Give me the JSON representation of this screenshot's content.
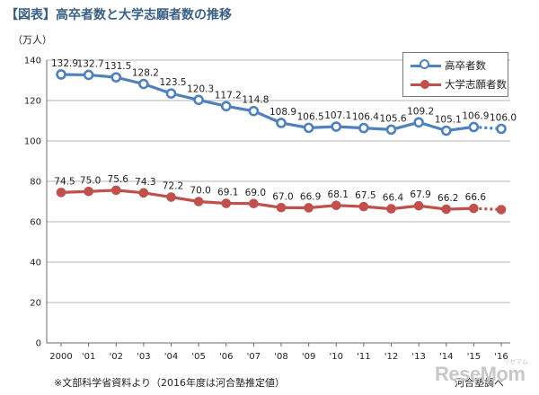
{
  "title": "【図表】高卒者数と大学志願者数の推移",
  "unit_label": "（万人）",
  "footnote": "※文部科学省資料より（2016年度は河合塾推定値）",
  "source_credit": "河合塾調べ",
  "watermark": {
    "main": "ReseMom",
    "sub": "リセマム"
  },
  "colors": {
    "graduates": "#4f81bd",
    "applicants": "#c0504d"
  },
  "chart_data": {
    "type": "line",
    "title": "【図表】高卒者数と大学志願者数の推移",
    "ylabel": "（万人）",
    "xlabel": "",
    "ylim": [
      0,
      140
    ],
    "yticks": [
      0,
      20,
      40,
      60,
      80,
      100,
      120,
      140
    ],
    "grid": true,
    "legend_position": "top-right",
    "categories": [
      "2000",
      "'01",
      "'02",
      "'03",
      "'04",
      "'05",
      "'06",
      "'07",
      "'08",
      "'09",
      "'10",
      "'11",
      "'12",
      "'13",
      "'14",
      "'15",
      "'16"
    ],
    "series": [
      {
        "name": "高卒者数",
        "color": "#4f81bd",
        "values": [
          132.9,
          132.7,
          131.5,
          128.2,
          123.5,
          120.3,
          117.2,
          114.8,
          108.9,
          106.5,
          107.1,
          106.4,
          105.6,
          109.2,
          105.1,
          106.9,
          106.0
        ],
        "labels": [
          "132.9",
          "132.7",
          "131.5",
          "128.2",
          "123.5",
          "120.3",
          "117.2",
          "114.8",
          "108.9",
          "106.5",
          "107.1",
          "106.4",
          "105.6",
          "109.2",
          "105.1",
          "106.9",
          "106.0"
        ],
        "estimated_last": true
      },
      {
        "name": "大学志願者数",
        "color": "#c0504d",
        "values": [
          74.5,
          75.0,
          75.6,
          74.3,
          72.2,
          70.0,
          69.1,
          69.0,
          67.0,
          66.9,
          68.1,
          67.5,
          66.4,
          67.9,
          66.2,
          66.6,
          66.0
        ],
        "labels": [
          "74.5",
          "75.0",
          "75.6",
          "74.3",
          "72.2",
          "70.0",
          "69.1",
          "69.0",
          "67.0",
          "66.9",
          "68.1",
          "67.5",
          "66.4",
          "67.9",
          "66.2",
          "66.6",
          ""
        ],
        "estimated_last": true
      }
    ]
  }
}
